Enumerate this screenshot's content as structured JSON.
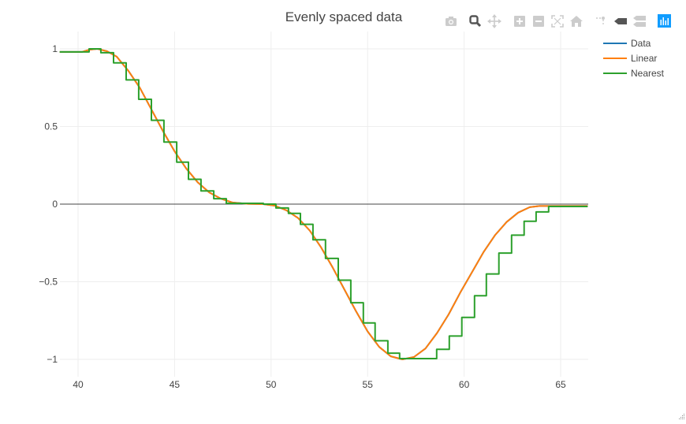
{
  "chart_data": {
    "type": "line",
    "title": "Evenly spaced data",
    "xlabel": "",
    "ylabel": "",
    "xlim": [
      39.05,
      66.4
    ],
    "ylim": [
      -1.03,
      1.04
    ],
    "x_ticks": [
      40,
      45,
      50,
      55,
      60,
      65
    ],
    "x_tick_labels": [
      "40",
      "45",
      "50",
      "55",
      "60",
      "65"
    ],
    "y_ticks": [
      1,
      0.5,
      0,
      -0.5,
      -1
    ],
    "y_tick_labels": [
      "1",
      "0.5",
      "0",
      "−0.5",
      "−1"
    ],
    "grid": true,
    "zero_line": true,
    "legend_position": "right-top",
    "series": [
      {
        "name": "Data",
        "color": "#1f77b4",
        "mode": "lines",
        "x": [
          39.05,
          40.2,
          40.6,
          41.0,
          41.5,
          42.0,
          42.6,
          43.2,
          43.8,
          44.4,
          45.0,
          45.6,
          46.2,
          46.8,
          47.4,
          48.0,
          48.8,
          49.6,
          50.2,
          50.8,
          51.4,
          52.0,
          52.6,
          53.2,
          53.8,
          54.4,
          55.0,
          55.6,
          56.2,
          56.8,
          57.4,
          58.0,
          58.6,
          59.2,
          59.8,
          60.4,
          61.0,
          61.6,
          62.2,
          62.8,
          63.4,
          63.9,
          64.5,
          66.4
        ],
        "y": [
          0.98,
          0.98,
          0.995,
          1.0,
          0.985,
          0.95,
          0.86,
          0.75,
          0.61,
          0.47,
          0.34,
          0.23,
          0.14,
          0.075,
          0.035,
          0.01,
          0.002,
          0.0,
          -0.01,
          -0.04,
          -0.09,
          -0.17,
          -0.28,
          -0.41,
          -0.55,
          -0.69,
          -0.82,
          -0.92,
          -0.98,
          -1.0,
          -0.985,
          -0.93,
          -0.83,
          -0.71,
          -0.57,
          -0.44,
          -0.31,
          -0.2,
          -0.115,
          -0.055,
          -0.02,
          -0.012,
          -0.012,
          -0.012
        ]
      },
      {
        "name": "Linear",
        "color": "#ff7f0e",
        "mode": "lines",
        "x": [
          39.05,
          40.2,
          40.6,
          41.0,
          41.5,
          42.0,
          42.6,
          43.2,
          43.8,
          44.4,
          45.0,
          45.6,
          46.2,
          46.8,
          47.4,
          48.0,
          48.8,
          49.6,
          50.2,
          50.8,
          51.4,
          52.0,
          52.6,
          53.2,
          53.8,
          54.4,
          55.0,
          55.6,
          56.2,
          56.8,
          57.4,
          58.0,
          58.6,
          59.2,
          59.8,
          60.4,
          61.0,
          61.6,
          62.2,
          62.8,
          63.4,
          63.9,
          64.5,
          66.4
        ],
        "y": [
          0.98,
          0.98,
          0.995,
          1.0,
          0.985,
          0.95,
          0.86,
          0.75,
          0.61,
          0.47,
          0.34,
          0.23,
          0.14,
          0.075,
          0.035,
          0.01,
          0.002,
          0.0,
          -0.01,
          -0.04,
          -0.09,
          -0.17,
          -0.28,
          -0.41,
          -0.55,
          -0.69,
          -0.82,
          -0.92,
          -0.98,
          -1.0,
          -0.985,
          -0.93,
          -0.83,
          -0.71,
          -0.57,
          -0.44,
          -0.31,
          -0.2,
          -0.115,
          -0.055,
          -0.02,
          -0.012,
          -0.012,
          -0.012
        ]
      },
      {
        "name": "Nearest",
        "color": "#2ca02c",
        "mode": "steps",
        "edges": [
          39.05,
          40.57,
          41.18,
          41.84,
          42.49,
          43.14,
          43.8,
          44.45,
          45.11,
          45.72,
          46.37,
          47.03,
          47.68,
          49.6,
          50.25,
          50.9,
          51.52,
          52.17,
          52.82,
          53.48,
          54.13,
          54.78,
          55.39,
          56.05,
          56.66,
          57.31,
          58.58,
          59.23,
          59.88,
          60.54,
          61.15,
          61.8,
          62.46,
          63.11,
          63.73,
          64.38,
          66.4
        ],
        "levels": [
          0.98,
          1.0,
          0.975,
          0.91,
          0.8,
          0.675,
          0.54,
          0.4,
          0.27,
          0.16,
          0.085,
          0.035,
          0.005,
          0.0,
          -0.025,
          -0.06,
          -0.13,
          -0.23,
          -0.35,
          -0.49,
          -0.635,
          -0.765,
          -0.88,
          -0.96,
          -0.995,
          -0.995,
          -0.935,
          -0.85,
          -0.73,
          -0.59,
          -0.45,
          -0.315,
          -0.2,
          -0.11,
          -0.05,
          -0.015
        ]
      }
    ]
  },
  "legend": {
    "items": [
      {
        "label": "Data",
        "color": "#1f77b4"
      },
      {
        "label": "Linear",
        "color": "#ff7f0e"
      },
      {
        "label": "Nearest",
        "color": "#2ca02c"
      }
    ]
  },
  "modebar": {
    "buttons": [
      {
        "name": "download-plot-as-png",
        "icon": "camera-icon"
      },
      {
        "name": "zoom",
        "icon": "zoom-magnifier-icon",
        "active": true
      },
      {
        "name": "pan",
        "icon": "pan-arrows-icon"
      },
      {
        "name": "zoom-in",
        "icon": "plus-box-icon"
      },
      {
        "name": "zoom-out",
        "icon": "minus-box-icon"
      },
      {
        "name": "autoscale",
        "icon": "autoscale-icon"
      },
      {
        "name": "reset-axes",
        "icon": "home-icon"
      },
      {
        "name": "toggle-spike-lines",
        "icon": "spike-lines-icon"
      },
      {
        "name": "show-closest-data-on-hover",
        "icon": "hover-closest-icon"
      },
      {
        "name": "compare-data-on-hover",
        "icon": "hover-compare-icon"
      },
      {
        "name": "produced-with-plotly",
        "icon": "plotly-logo-icon"
      }
    ]
  }
}
